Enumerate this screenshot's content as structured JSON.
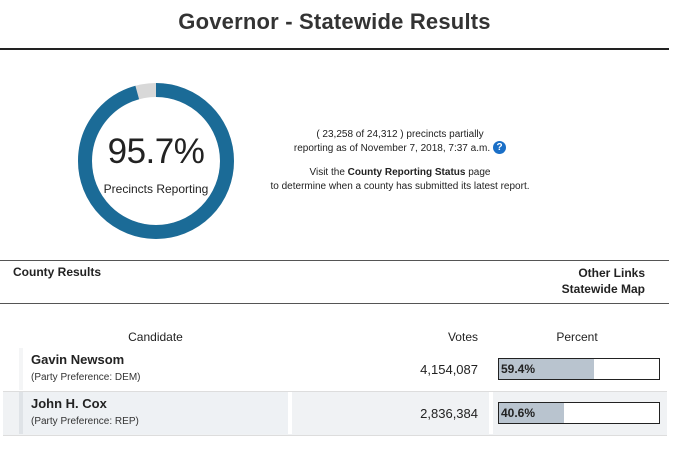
{
  "page": {
    "title": "Governor - Statewide Results"
  },
  "reporting": {
    "percent": 95.7,
    "percent_label": "95.7%",
    "label": "Precincts Reporting",
    "ring_color": "#1b6b97",
    "ring_remainder_color": "#d8d8d8"
  },
  "status": {
    "line1": "( 23,258 of 24,312 ) precincts partially",
    "line2": "reporting as of November 7, 2018, 7:37 a.m.",
    "help_icon": "question-icon",
    "visit_prefix": "Visit the ",
    "visit_link": "County Reporting Status",
    "visit_suffix": " page",
    "line4": "to determine when a county has submitted its latest report."
  },
  "sections": {
    "county_results": "County Results",
    "other_links": "Other Links",
    "statewide_map": "Statewide Map"
  },
  "table": {
    "headers": {
      "candidate": "Candidate",
      "votes": "Votes",
      "percent": "Percent"
    },
    "rows": [
      {
        "name": "Gavin Newsom",
        "party": "(Party Preference: DEM)",
        "votes": "4,154,087",
        "percent_label": "59.4%",
        "percent": 59.4
      },
      {
        "name": "John H. Cox",
        "party": "(Party Preference: REP)",
        "votes": "2,836,384",
        "percent_label": "40.6%",
        "percent": 40.6
      }
    ]
  }
}
